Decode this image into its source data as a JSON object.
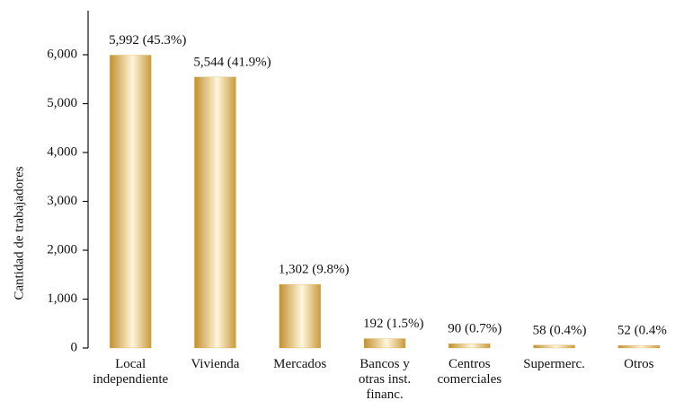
{
  "chart_data": {
    "type": "bar",
    "y_label": "Cantidad de trabajadores",
    "categories": [
      "Local\nindependiente",
      "Vivienda",
      "Mercados",
      "Bancos y\notras inst.\nfinanc.",
      "Centros\ncomerciales",
      "Supermerc.",
      "Otros"
    ],
    "values": [
      5992,
      5544,
      1302,
      192,
      90,
      58,
      52
    ],
    "value_labels": [
      "5,992 (45.3%)",
      "5,544 (41.9%)",
      "1,302 (9.8%)",
      "192 (1.5%)",
      "90 (0.7%)",
      "58 (0.4%)",
      "52 (0.4%"
    ],
    "color": "#d4a843",
    "ylim": [
      0,
      6900
    ],
    "yticks": [
      0,
      {
        "value": 1000,
        "label": "1,000"
      },
      {
        "value": 2000,
        "label": "2,000"
      },
      {
        "value": 3000,
        "label": "3,000"
      },
      {
        "value": 4000,
        "label": "4,000"
      },
      {
        "value": 5000,
        "label": "5,000"
      },
      {
        "value": 6000,
        "label": "6,000"
      }
    ],
    "grid": false
  }
}
